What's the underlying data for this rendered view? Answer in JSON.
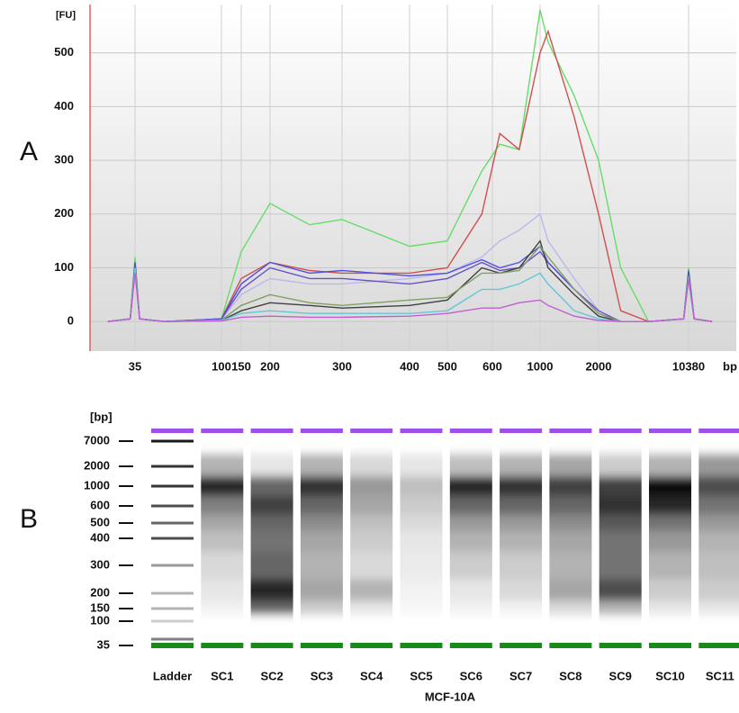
{
  "panel_labels": [
    "A",
    "B"
  ],
  "chart_data": [
    {
      "type": "line",
      "y_label": "[FU]",
      "x_label": "bp",
      "x": [
        25,
        33,
        35,
        37,
        50,
        100,
        150,
        200,
        250,
        300,
        400,
        500,
        575,
        650,
        800,
        1000,
        1100,
        1500,
        2000,
        3000,
        5000,
        9500,
        10380,
        11500,
        16000
      ],
      "xlim": [
        20,
        25000
      ],
      "xticks": [
        35,
        100,
        150,
        200,
        300,
        400,
        500,
        600,
        1000,
        2000,
        10380
      ],
      "ylim": [
        -55,
        590
      ],
      "yticks": [
        0,
        100,
        200,
        300,
        400,
        500
      ],
      "grid": true,
      "series": [
        {
          "color": "#66dd66",
          "values": [
            0,
            5,
            120,
            5,
            0,
            5,
            130,
            220,
            180,
            190,
            140,
            150,
            280,
            330,
            320,
            580,
            520,
            420,
            300,
            100,
            0,
            5,
            100,
            5,
            0
          ]
        },
        {
          "color": "#d05050",
          "values": [
            0,
            5,
            110,
            5,
            0,
            5,
            80,
            110,
            95,
            90,
            90,
            100,
            200,
            350,
            320,
            500,
            540,
            380,
            200,
            20,
            0,
            5,
            90,
            5,
            0
          ]
        },
        {
          "color": "#b8b8f0",
          "values": [
            0,
            5,
            100,
            5,
            0,
            4,
            50,
            80,
            70,
            70,
            80,
            90,
            120,
            150,
            170,
            200,
            150,
            80,
            20,
            0,
            0,
            5,
            85,
            5,
            0
          ]
        },
        {
          "color": "#6a50c8",
          "values": [
            0,
            5,
            100,
            5,
            0,
            5,
            60,
            100,
            80,
            80,
            70,
            80,
            110,
            95,
            100,
            130,
            110,
            60,
            20,
            0,
            0,
            5,
            90,
            5,
            0
          ]
        },
        {
          "color": "#5050e0",
          "values": [
            0,
            5,
            110,
            5,
            0,
            5,
            70,
            110,
            90,
            95,
            85,
            90,
            115,
            100,
            110,
            140,
            110,
            60,
            15,
            0,
            0,
            5,
            95,
            5,
            0
          ]
        },
        {
          "color": "#404040",
          "values": [
            0,
            5,
            100,
            5,
            0,
            2,
            20,
            35,
            30,
            25,
            30,
            40,
            100,
            90,
            100,
            150,
            100,
            50,
            10,
            0,
            0,
            5,
            80,
            5,
            0
          ]
        },
        {
          "color": "#80a060",
          "values": [
            0,
            5,
            100,
            5,
            0,
            3,
            30,
            50,
            35,
            30,
            40,
            45,
            90,
            90,
            95,
            140,
            120,
            60,
            15,
            0,
            0,
            5,
            85,
            5,
            0
          ]
        },
        {
          "color": "#60c8d8",
          "values": [
            0,
            5,
            100,
            5,
            0,
            2,
            15,
            20,
            15,
            15,
            15,
            20,
            60,
            60,
            70,
            90,
            70,
            20,
            5,
            0,
            0,
            5,
            80,
            5,
            0
          ]
        },
        {
          "color": "#c060d0",
          "values": [
            0,
            5,
            90,
            5,
            0,
            1,
            8,
            10,
            8,
            8,
            10,
            15,
            25,
            25,
            35,
            40,
            30,
            10,
            2,
            0,
            0,
            5,
            80,
            5,
            0
          ]
        }
      ]
    },
    {
      "type": "gel",
      "y_label": "[bp]",
      "yticks": [
        7000,
        2000,
        1000,
        600,
        500,
        400,
        300,
        200,
        150,
        100,
        35
      ],
      "group_label": "MCF-10A",
      "lanes": [
        {
          "name": "Ladder",
          "values": [
            0.9,
            0.8,
            0.8,
            0.7,
            0.6,
            0.7,
            0.4,
            0.3,
            0.3,
            0.2,
            0.5
          ]
        },
        {
          "name": "SC1",
          "values": [
            0,
            0.3,
            0.85,
            0.5,
            0.35,
            0.25,
            0.15,
            0.1,
            0.05,
            0,
            0
          ]
        },
        {
          "name": "SC2",
          "values": [
            0,
            0.1,
            0.6,
            0.75,
            0.6,
            0.55,
            0.6,
            0.85,
            0.6,
            0,
            0
          ]
        },
        {
          "name": "SC3",
          "values": [
            0,
            0.3,
            0.8,
            0.6,
            0.45,
            0.35,
            0.3,
            0.35,
            0.2,
            0,
            0
          ]
        },
        {
          "name": "SC4",
          "values": [
            0,
            0.15,
            0.4,
            0.35,
            0.25,
            0.2,
            0.15,
            0.3,
            0.1,
            0,
            0
          ]
        },
        {
          "name": "SC5",
          "values": [
            0,
            0.1,
            0.25,
            0.2,
            0.15,
            0.1,
            0.08,
            0.05,
            0.03,
            0,
            0
          ]
        },
        {
          "name": "SC6",
          "values": [
            0,
            0.25,
            0.85,
            0.6,
            0.4,
            0.3,
            0.2,
            0.1,
            0.05,
            0,
            0
          ]
        },
        {
          "name": "SC7",
          "values": [
            0,
            0.3,
            0.8,
            0.6,
            0.4,
            0.3,
            0.2,
            0.15,
            0.05,
            0,
            0
          ]
        },
        {
          "name": "SC8",
          "values": [
            0,
            0.35,
            0.75,
            0.6,
            0.45,
            0.35,
            0.3,
            0.35,
            0.15,
            0,
            0
          ]
        },
        {
          "name": "SC9",
          "values": [
            0,
            0.2,
            0.75,
            0.8,
            0.65,
            0.55,
            0.55,
            0.7,
            0.3,
            0,
            0
          ]
        },
        {
          "name": "SC10",
          "values": [
            0,
            0.3,
            0.95,
            0.85,
            0.55,
            0.4,
            0.3,
            0.2,
            0.1,
            0,
            0
          ]
        },
        {
          "name": "SC11",
          "values": [
            0,
            0.4,
            0.7,
            0.55,
            0.4,
            0.3,
            0.25,
            0.2,
            0.1,
            0,
            0
          ]
        }
      ]
    }
  ]
}
